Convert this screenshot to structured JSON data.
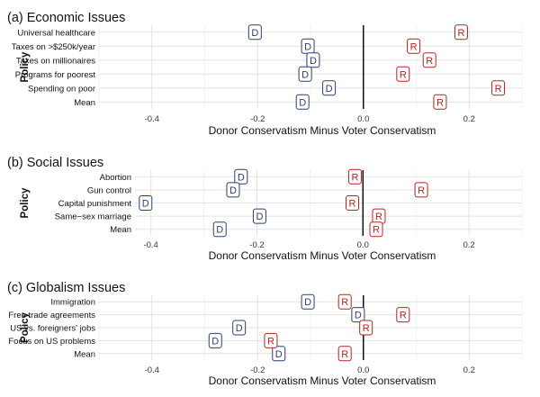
{
  "chart_data": [
    {
      "type": "scatter",
      "title": "(a) Economic Issues",
      "ylabel": "Policy",
      "xlabel": "Donor Conservatism Minus Voter Conservatism",
      "xlim": [
        -0.5,
        0.3
      ],
      "xticks": [
        -0.4,
        -0.2,
        0.0,
        0.2
      ],
      "xtick_labels": [
        "-0.4",
        "-0.2",
        "0.0",
        "0.2"
      ],
      "grid": true,
      "categories": [
        "Universal healthcare",
        "Taxes on >$250k/year",
        "Taxes on millionaires",
        "Programs for poorest",
        "Spending on poor",
        "Mean"
      ],
      "series": [
        {
          "marker": "D",
          "color": "#2a3f6b",
          "values": [
            -0.205,
            -0.105,
            -0.095,
            -0.11,
            -0.065,
            -0.115
          ]
        },
        {
          "marker": "R",
          "color": "#b22222",
          "values": [
            0.185,
            0.095,
            0.125,
            0.075,
            0.255,
            0.145
          ]
        }
      ]
    },
    {
      "type": "scatter",
      "title": "(b) Social Issues",
      "ylabel": "Policy",
      "xlabel": "Donor Conservatism Minus Voter Conservatism",
      "xlim": [
        -0.43,
        0.3
      ],
      "xticks": [
        -0.4,
        -0.2,
        0.0,
        0.2
      ],
      "xtick_labels": [
        "-0.4",
        "-0.2",
        "0.0",
        "0.2"
      ],
      "grid": true,
      "categories": [
        "Abortion",
        "Gun control",
        "Capital punishment",
        "Same−sex marriage",
        "Mean"
      ],
      "series": [
        {
          "marker": "D",
          "color": "#2a3f6b",
          "values": [
            -0.23,
            -0.245,
            -0.41,
            -0.195,
            -0.27
          ]
        },
        {
          "marker": "R",
          "color": "#b22222",
          "values": [
            -0.015,
            0.11,
            -0.02,
            0.03,
            0.025
          ]
        }
      ]
    },
    {
      "type": "scatter",
      "title": "(c) Globalism Issues",
      "ylabel": "Policy",
      "xlabel": "Donor Conservatism Minus Voter Conservatism",
      "xlim": [
        -0.5,
        0.3
      ],
      "xticks": [
        -0.4,
        -0.2,
        0.0,
        0.2
      ],
      "xtick_labels": [
        "-0.4",
        "-0.2",
        "0.0",
        "0.2"
      ],
      "grid": true,
      "categories": [
        "Immigration",
        "Free trade agreements",
        "US vs. foreigners' jobs",
        "Focus on US problems",
        "Mean"
      ],
      "series": [
        {
          "marker": "D",
          "color": "#2a3f6b",
          "values": [
            -0.105,
            -0.01,
            -0.235,
            -0.28,
            -0.16
          ]
        },
        {
          "marker": "R",
          "color": "#b22222",
          "values": [
            -0.035,
            0.075,
            0.005,
            -0.175,
            -0.035
          ]
        }
      ]
    }
  ]
}
